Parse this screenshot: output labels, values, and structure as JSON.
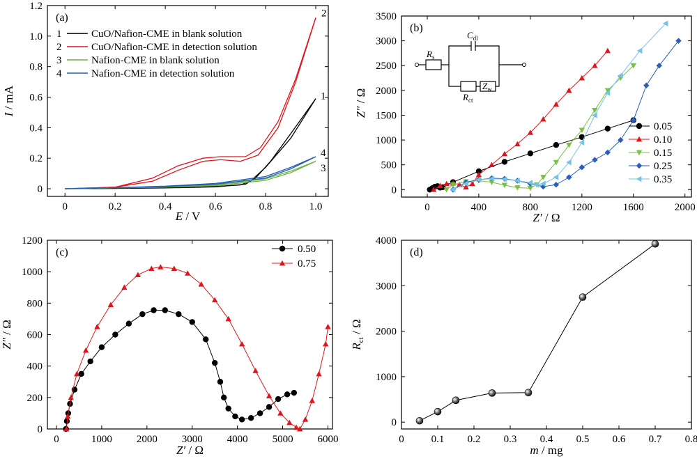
{
  "chart_data": [
    {
      "panel": "(a)",
      "type": "line",
      "xlabel": "E / V",
      "ylabel": "I / mA",
      "xlim": [
        -0.07,
        1.05
      ],
      "ylim": [
        -0.05,
        1.2
      ],
      "xticks": [
        "0",
        "0.2",
        "0.4",
        "0.6",
        "0.8",
        "1.0"
      ],
      "yticks": [
        "0",
        "0.2",
        "0.4",
        "0.6",
        "0.8",
        "1.0",
        "1.2"
      ],
      "legend": [
        "1",
        "2",
        "3",
        "4"
      ],
      "series": [
        {
          "name": "CuO/Nafion-CME in blank solution",
          "label": "1",
          "color": "#000000",
          "forward": [
            [
              0,
              0.0
            ],
            [
              0.2,
              0.003
            ],
            [
              0.4,
              0.008
            ],
            [
              0.6,
              0.015
            ],
            [
              0.7,
              0.025
            ],
            [
              0.74,
              0.05
            ],
            [
              0.8,
              0.14
            ],
            [
              0.9,
              0.33
            ],
            [
              1.0,
              0.59
            ]
          ],
          "reverse": [
            [
              1.0,
              0.59
            ],
            [
              0.9,
              0.36
            ],
            [
              0.82,
              0.18
            ],
            [
              0.76,
              0.07
            ],
            [
              0.72,
              0.03
            ],
            [
              0.6,
              0.012
            ],
            [
              0.4,
              0.005
            ],
            [
              0.2,
              0.002
            ],
            [
              0,
              0.0
            ]
          ]
        },
        {
          "name": "CuO/Nafion-CME in detection solution",
          "label": "2",
          "color": "#e0151b",
          "forward": [
            [
              0,
              0.0
            ],
            [
              0.2,
              0.01
            ],
            [
              0.35,
              0.05
            ],
            [
              0.45,
              0.12
            ],
            [
              0.55,
              0.18
            ],
            [
              0.62,
              0.19
            ],
            [
              0.7,
              0.18
            ],
            [
              0.77,
              0.22
            ],
            [
              0.85,
              0.4
            ],
            [
              0.92,
              0.7
            ],
            [
              1.0,
              1.12
            ]
          ],
          "reverse": [
            [
              1.0,
              1.12
            ],
            [
              0.92,
              0.72
            ],
            [
              0.85,
              0.44
            ],
            [
              0.78,
              0.27
            ],
            [
              0.72,
              0.21
            ],
            [
              0.62,
              0.21
            ],
            [
              0.55,
              0.2
            ],
            [
              0.45,
              0.15
            ],
            [
              0.35,
              0.07
            ],
            [
              0.2,
              0.01
            ],
            [
              0,
              0.0
            ]
          ]
        },
        {
          "name": "Nafion-CME in blank solution",
          "label": "3",
          "color": "#6db33f",
          "forward": [
            [
              0,
              0.0
            ],
            [
              0.2,
              0.005
            ],
            [
              0.4,
              0.01
            ],
            [
              0.6,
              0.02
            ],
            [
              0.8,
              0.055
            ],
            [
              0.9,
              0.105
            ],
            [
              1.0,
              0.18
            ]
          ],
          "reverse": [
            [
              1.0,
              0.18
            ],
            [
              0.9,
              0.115
            ],
            [
              0.8,
              0.065
            ],
            [
              0.6,
              0.025
            ],
            [
              0.4,
              0.012
            ],
            [
              0.2,
              0.005
            ],
            [
              0,
              0.0
            ]
          ]
        },
        {
          "name": "Nafion-CME in detection solution",
          "label": "4",
          "color": "#1f5fb5",
          "forward": [
            [
              0,
              0.0
            ],
            [
              0.2,
              0.006
            ],
            [
              0.4,
              0.015
            ],
            [
              0.6,
              0.03
            ],
            [
              0.8,
              0.07
            ],
            [
              0.9,
              0.13
            ],
            [
              1.0,
              0.21
            ]
          ],
          "reverse": [
            [
              1.0,
              0.21
            ],
            [
              0.9,
              0.14
            ],
            [
              0.8,
              0.08
            ],
            [
              0.6,
              0.035
            ],
            [
              0.4,
              0.017
            ],
            [
              0.2,
              0.007
            ],
            [
              0,
              0.0
            ]
          ]
        }
      ]
    },
    {
      "panel": "(b)",
      "type": "scatter",
      "xlabel": "Z′ / Ω",
      "ylabel": "Z″ / Ω",
      "xlim": [
        -200,
        2050
      ],
      "ylim": [
        -150,
        3500
      ],
      "xticks": [
        "0",
        "400",
        "800",
        "1200",
        "1600",
        "2000"
      ],
      "yticks": [
        "0",
        "500",
        "1000",
        "1500",
        "2000",
        "2500",
        "3000",
        "3500"
      ],
      "inset": {
        "labels": [
          "Rs",
          "Cdl",
          "Rct",
          "Zw"
        ]
      },
      "series": [
        {
          "name": "0.05",
          "marker": "circle",
          "color": "#000000",
          "points": [
            [
              20,
              0
            ],
            [
              40,
              30
            ],
            [
              60,
              60
            ],
            [
              80,
              70
            ],
            [
              100,
              40
            ],
            [
              120,
              50
            ],
            [
              200,
              150
            ],
            [
              400,
              370
            ],
            [
              600,
              560
            ],
            [
              800,
              730
            ],
            [
              1000,
              900
            ],
            [
              1200,
              1060
            ],
            [
              1400,
              1230
            ],
            [
              1600,
              1400
            ]
          ]
        },
        {
          "name": "0.10",
          "marker": "triangle-up",
          "color": "#e0151b",
          "points": [
            [
              50,
              0
            ],
            [
              100,
              80
            ],
            [
              150,
              120
            ],
            [
              200,
              130
            ],
            [
              250,
              100
            ],
            [
              300,
              50
            ],
            [
              350,
              120
            ],
            [
              400,
              300
            ],
            [
              500,
              500
            ],
            [
              600,
              720
            ],
            [
              700,
              920
            ],
            [
              800,
              1150
            ],
            [
              900,
              1420
            ],
            [
              1000,
              1720
            ],
            [
              1100,
              2000
            ],
            [
              1200,
              2250
            ],
            [
              1300,
              2500
            ],
            [
              1400,
              2800
            ]
          ]
        },
        {
          "name": "0.15",
          "marker": "triangle-down",
          "color": "#7ac142",
          "points": [
            [
              150,
              0
            ],
            [
              200,
              100
            ],
            [
              300,
              160
            ],
            [
              400,
              180
            ],
            [
              500,
              150
            ],
            [
              600,
              90
            ],
            [
              700,
              40
            ],
            [
              800,
              30
            ],
            [
              850,
              100
            ],
            [
              900,
              250
            ],
            [
              1000,
              550
            ],
            [
              1100,
              900
            ],
            [
              1200,
              1200
            ],
            [
              1300,
              1600
            ],
            [
              1400,
              2000
            ],
            [
              1500,
              2250
            ],
            [
              1600,
              2500
            ]
          ]
        },
        {
          "name": "0.25",
          "marker": "diamond",
          "color": "#2a5eb8",
          "points": [
            [
              200,
              0
            ],
            [
              300,
              150
            ],
            [
              400,
              200
            ],
            [
              500,
              230
            ],
            [
              600,
              220
            ],
            [
              700,
              180
            ],
            [
              800,
              120
            ],
            [
              900,
              60
            ],
            [
              1000,
              100
            ],
            [
              1100,
              250
            ],
            [
              1200,
              450
            ],
            [
              1300,
              600
            ],
            [
              1400,
              750
            ],
            [
              1500,
              1000
            ],
            [
              1600,
              1400
            ],
            [
              1700,
              2100
            ],
            [
              1800,
              2500
            ],
            [
              1950,
              3000
            ]
          ]
        },
        {
          "name": "0.35",
          "marker": "triangle-left",
          "color": "#74c3e7",
          "points": [
            [
              200,
              0
            ],
            [
              300,
              120
            ],
            [
              400,
              200
            ],
            [
              500,
              220
            ],
            [
              600,
              210
            ],
            [
              700,
              180
            ],
            [
              800,
              140
            ],
            [
              850,
              100
            ],
            [
              900,
              120
            ],
            [
              1000,
              250
            ],
            [
              1100,
              550
            ],
            [
              1200,
              950
            ],
            [
              1300,
              1500
            ],
            [
              1400,
              1950
            ],
            [
              1500,
              2300
            ],
            [
              1650,
              2800
            ],
            [
              1850,
              3350
            ]
          ]
        }
      ]
    },
    {
      "panel": "(c)",
      "type": "scatter",
      "xlabel": "Z′ / Ω",
      "ylabel": "Z″ / Ω",
      "xlim": [
        -200,
        6100
      ],
      "ylim": [
        0,
        1200
      ],
      "xticks": [
        "0",
        "1000",
        "2000",
        "3000",
        "4000",
        "5000",
        "6000"
      ],
      "yticks": [
        "0",
        "200",
        "400",
        "600",
        "800",
        "1000",
        "1200"
      ],
      "series": [
        {
          "name": "0.50",
          "marker": "circle",
          "color": "#000000",
          "points": [
            [
              210,
              0
            ],
            [
              230,
              50
            ],
            [
              260,
              100
            ],
            [
              300,
              160
            ],
            [
              400,
              250
            ],
            [
              550,
              350
            ],
            [
              750,
              430
            ],
            [
              1000,
              520
            ],
            [
              1300,
              600
            ],
            [
              1600,
              670
            ],
            [
              1900,
              730
            ],
            [
              2150,
              755
            ],
            [
              2400,
              755
            ],
            [
              2700,
              730
            ],
            [
              3000,
              680
            ],
            [
              3300,
              570
            ],
            [
              3500,
              420
            ],
            [
              3620,
              300
            ],
            [
              3700,
              200
            ],
            [
              3800,
              130
            ],
            [
              3950,
              80
            ],
            [
              4100,
              60
            ],
            [
              4300,
              70
            ],
            [
              4500,
              100
            ],
            [
              4700,
              140
            ],
            [
              4900,
              190
            ],
            [
              5100,
              220
            ],
            [
              5250,
              230
            ]
          ]
        },
        {
          "name": "0.75",
          "marker": "triangle-up",
          "color": "#e0151b",
          "points": [
            [
              220,
              0
            ],
            [
              250,
              80
            ],
            [
              320,
              200
            ],
            [
              450,
              350
            ],
            [
              650,
              500
            ],
            [
              900,
              650
            ],
            [
              1200,
              790
            ],
            [
              1500,
              900
            ],
            [
              1800,
              980
            ],
            [
              2100,
              1020
            ],
            [
              2300,
              1030
            ],
            [
              2600,
              1020
            ],
            [
              2900,
              990
            ],
            [
              3200,
              920
            ],
            [
              3500,
              820
            ],
            [
              3800,
              700
            ],
            [
              4100,
              540
            ],
            [
              4400,
              370
            ],
            [
              4700,
              210
            ],
            [
              4950,
              100
            ],
            [
              5150,
              40
            ],
            [
              5300,
              10
            ],
            [
              5380,
              0
            ],
            [
              5500,
              60
            ],
            [
              5650,
              180
            ],
            [
              5800,
              350
            ],
            [
              5950,
              540
            ],
            [
              6000,
              650
            ]
          ]
        }
      ]
    },
    {
      "panel": "(d)",
      "type": "line",
      "xlabel": "m / mg",
      "ylabel": "Rct / Ω",
      "xlim": [
        0,
        0.8
      ],
      "ylim": [
        -150,
        4000
      ],
      "xticks": [
        "0",
        "0.1",
        "0.2",
        "0.3",
        "0.4",
        "0.5",
        "0.6",
        "0.7",
        "0.8"
      ],
      "yticks": [
        "0",
        "1000",
        "2000",
        "3000",
        "4000"
      ],
      "points": [
        [
          0.05,
          30
        ],
        [
          0.1,
          230
        ],
        [
          0.15,
          480
        ],
        [
          0.25,
          640
        ],
        [
          0.35,
          650
        ],
        [
          0.5,
          2750
        ],
        [
          0.7,
          3920
        ]
      ]
    }
  ]
}
